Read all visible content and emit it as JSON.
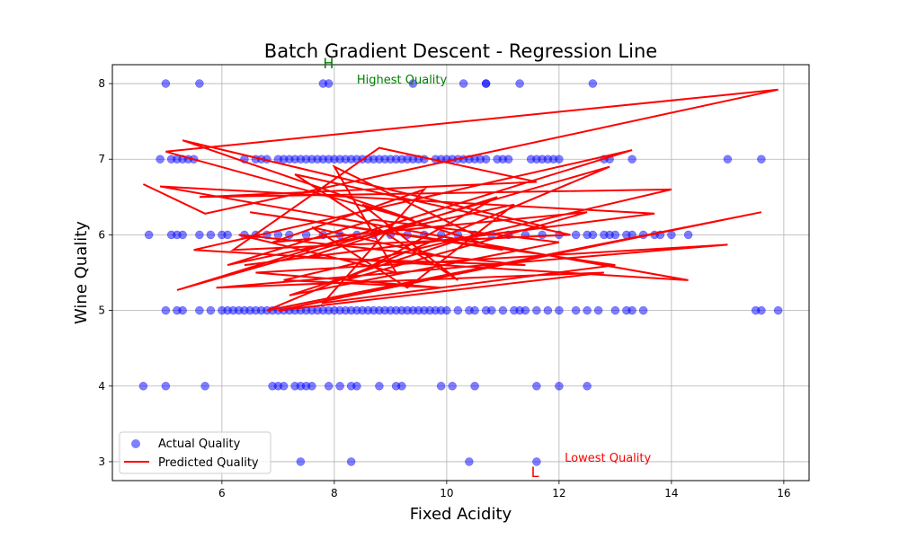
{
  "chart_data": {
    "type": "scatter",
    "title": "Batch Gradient Descent - Regression Line",
    "xlabel": "Fixed Acidity",
    "ylabel": "Wine Quality",
    "xlim": [
      4.05,
      16.45
    ],
    "ylim": [
      2.75,
      8.25
    ],
    "xticks": [
      6,
      8,
      10,
      12,
      14,
      16
    ],
    "yticks": [
      3,
      4,
      5,
      6,
      7,
      8
    ],
    "grid": true,
    "legend_position": "lower-left",
    "series": [
      {
        "name": "Actual Quality",
        "kind": "scatter",
        "color": "#0000ff",
        "alpha": 0.5,
        "points": [
          [
            5.0,
            8
          ],
          [
            5.6,
            8
          ],
          [
            7.8,
            8
          ],
          [
            7.9,
            8
          ],
          [
            9.4,
            8
          ],
          [
            10.3,
            8
          ],
          [
            10.7,
            8
          ],
          [
            10.7,
            8
          ],
          [
            11.3,
            8
          ],
          [
            12.6,
            8
          ],
          [
            4.9,
            7
          ],
          [
            5.1,
            7
          ],
          [
            5.2,
            7
          ],
          [
            5.3,
            7
          ],
          [
            5.4,
            7
          ],
          [
            5.5,
            7
          ],
          [
            6.4,
            7
          ],
          [
            6.6,
            7
          ],
          [
            6.7,
            7
          ],
          [
            6.8,
            7
          ],
          [
            7.0,
            7
          ],
          [
            7.1,
            7
          ],
          [
            7.2,
            7
          ],
          [
            7.3,
            7
          ],
          [
            7.4,
            7
          ],
          [
            7.5,
            7
          ],
          [
            7.6,
            7
          ],
          [
            7.7,
            7
          ],
          [
            7.8,
            7
          ],
          [
            7.9,
            7
          ],
          [
            8.0,
            7
          ],
          [
            8.1,
            7
          ],
          [
            8.2,
            7
          ],
          [
            8.3,
            7
          ],
          [
            8.4,
            7
          ],
          [
            8.5,
            7
          ],
          [
            8.6,
            7
          ],
          [
            8.7,
            7
          ],
          [
            8.8,
            7
          ],
          [
            8.9,
            7
          ],
          [
            9.0,
            7
          ],
          [
            9.1,
            7
          ],
          [
            9.2,
            7
          ],
          [
            9.3,
            7
          ],
          [
            9.4,
            7
          ],
          [
            9.5,
            7
          ],
          [
            9.6,
            7
          ],
          [
            9.8,
            7
          ],
          [
            9.9,
            7
          ],
          [
            10.0,
            7
          ],
          [
            10.1,
            7
          ],
          [
            10.2,
            7
          ],
          [
            10.3,
            7
          ],
          [
            10.4,
            7
          ],
          [
            10.5,
            7
          ],
          [
            10.6,
            7
          ],
          [
            10.7,
            7
          ],
          [
            10.9,
            7
          ],
          [
            11.0,
            7
          ],
          [
            11.1,
            7
          ],
          [
            11.5,
            7
          ],
          [
            11.6,
            7
          ],
          [
            11.7,
            7
          ],
          [
            11.8,
            7
          ],
          [
            11.9,
            7
          ],
          [
            12.0,
            7
          ],
          [
            12.8,
            7
          ],
          [
            12.9,
            7
          ],
          [
            13.3,
            7
          ],
          [
            15.0,
            7
          ],
          [
            15.6,
            7
          ],
          [
            4.7,
            6
          ],
          [
            5.1,
            6
          ],
          [
            5.2,
            6
          ],
          [
            5.3,
            6
          ],
          [
            5.6,
            6
          ],
          [
            5.8,
            6
          ],
          [
            6.0,
            6
          ],
          [
            6.1,
            6
          ],
          [
            6.4,
            6
          ],
          [
            6.6,
            6
          ],
          [
            6.8,
            6
          ],
          [
            7.0,
            6
          ],
          [
            7.2,
            6
          ],
          [
            7.5,
            6
          ],
          [
            7.8,
            6
          ],
          [
            8.1,
            6
          ],
          [
            8.4,
            6
          ],
          [
            8.7,
            6
          ],
          [
            9.0,
            6
          ],
          [
            9.3,
            6
          ],
          [
            9.6,
            6
          ],
          [
            9.9,
            6
          ],
          [
            10.2,
            6
          ],
          [
            10.5,
            6
          ],
          [
            10.8,
            6
          ],
          [
            11.1,
            6
          ],
          [
            11.4,
            6
          ],
          [
            11.7,
            6
          ],
          [
            12.0,
            6
          ],
          [
            12.3,
            6
          ],
          [
            12.5,
            6
          ],
          [
            12.6,
            6
          ],
          [
            12.8,
            6
          ],
          [
            12.9,
            6
          ],
          [
            13.0,
            6
          ],
          [
            13.2,
            6
          ],
          [
            13.3,
            6
          ],
          [
            13.5,
            6
          ],
          [
            13.7,
            6
          ],
          [
            13.8,
            6
          ],
          [
            14.0,
            6
          ],
          [
            14.3,
            6
          ],
          [
            5.0,
            5
          ],
          [
            5.2,
            5
          ],
          [
            5.3,
            5
          ],
          [
            5.6,
            5
          ],
          [
            5.8,
            5
          ],
          [
            6.0,
            5
          ],
          [
            6.1,
            5
          ],
          [
            6.2,
            5
          ],
          [
            6.3,
            5
          ],
          [
            6.4,
            5
          ],
          [
            6.5,
            5
          ],
          [
            6.6,
            5
          ],
          [
            6.7,
            5
          ],
          [
            6.8,
            5
          ],
          [
            6.9,
            5
          ],
          [
            7.0,
            5
          ],
          [
            7.1,
            5
          ],
          [
            7.2,
            5
          ],
          [
            7.3,
            5
          ],
          [
            7.4,
            5
          ],
          [
            7.5,
            5
          ],
          [
            7.6,
            5
          ],
          [
            7.7,
            5
          ],
          [
            7.8,
            5
          ],
          [
            7.9,
            5
          ],
          [
            8.0,
            5
          ],
          [
            8.1,
            5
          ],
          [
            8.2,
            5
          ],
          [
            8.3,
            5
          ],
          [
            8.4,
            5
          ],
          [
            8.5,
            5
          ],
          [
            8.6,
            5
          ],
          [
            8.7,
            5
          ],
          [
            8.8,
            5
          ],
          [
            8.9,
            5
          ],
          [
            9.0,
            5
          ],
          [
            9.1,
            5
          ],
          [
            9.2,
            5
          ],
          [
            9.3,
            5
          ],
          [
            9.4,
            5
          ],
          [
            9.5,
            5
          ],
          [
            9.6,
            5
          ],
          [
            9.7,
            5
          ],
          [
            9.8,
            5
          ],
          [
            9.9,
            5
          ],
          [
            10.0,
            5
          ],
          [
            10.2,
            5
          ],
          [
            10.4,
            5
          ],
          [
            10.5,
            5
          ],
          [
            10.7,
            5
          ],
          [
            10.8,
            5
          ],
          [
            11.0,
            5
          ],
          [
            11.2,
            5
          ],
          [
            11.3,
            5
          ],
          [
            11.4,
            5
          ],
          [
            11.6,
            5
          ],
          [
            11.8,
            5
          ],
          [
            12.0,
            5
          ],
          [
            12.3,
            5
          ],
          [
            12.5,
            5
          ],
          [
            12.7,
            5
          ],
          [
            13.0,
            5
          ],
          [
            13.2,
            5
          ],
          [
            13.3,
            5
          ],
          [
            13.5,
            5
          ],
          [
            15.5,
            5
          ],
          [
            15.6,
            5
          ],
          [
            15.9,
            5
          ],
          [
            4.6,
            4
          ],
          [
            5.0,
            4
          ],
          [
            5.7,
            4
          ],
          [
            6.9,
            4
          ],
          [
            7.0,
            4
          ],
          [
            7.1,
            4
          ],
          [
            7.3,
            4
          ],
          [
            7.4,
            4
          ],
          [
            7.5,
            4
          ],
          [
            7.6,
            4
          ],
          [
            7.9,
            4
          ],
          [
            8.1,
            4
          ],
          [
            8.3,
            4
          ],
          [
            8.4,
            4
          ],
          [
            8.8,
            4
          ],
          [
            9.1,
            4
          ],
          [
            9.2,
            4
          ],
          [
            9.9,
            4
          ],
          [
            10.1,
            4
          ],
          [
            10.5,
            4
          ],
          [
            11.6,
            4
          ],
          [
            12.0,
            4
          ],
          [
            12.5,
            4
          ],
          [
            7.4,
            3
          ],
          [
            8.3,
            3
          ],
          [
            10.4,
            3
          ],
          [
            11.6,
            3
          ]
        ]
      },
      {
        "name": "Predicted Quality",
        "kind": "line",
        "color": "#ff0000",
        "points": [
          [
            4.6,
            6.67
          ],
          [
            5.7,
            6.28
          ],
          [
            15.9,
            7.92
          ],
          [
            5.0,
            7.1
          ],
          [
            9.4,
            6.2
          ],
          [
            5.3,
            7.25
          ],
          [
            11.8,
            6.1
          ],
          [
            6.4,
            5.6
          ],
          [
            13.7,
            6.28
          ],
          [
            4.9,
            6.64
          ],
          [
            14.3,
            5.4
          ],
          [
            5.5,
            5.8
          ],
          [
            13.3,
            7.12
          ],
          [
            5.2,
            5.27
          ],
          [
            12.9,
            6.9
          ],
          [
            6.8,
            5.0
          ],
          [
            15.6,
            6.3
          ],
          [
            7.0,
            5.0
          ],
          [
            12.8,
            5.5
          ],
          [
            5.9,
            5.3
          ],
          [
            15.0,
            5.87
          ],
          [
            6.6,
            5.5
          ],
          [
            9.9,
            5.3
          ],
          [
            7.1,
            5.4
          ],
          [
            14.0,
            6.6
          ],
          [
            5.6,
            6.5
          ],
          [
            11.6,
            6.7
          ],
          [
            8.8,
            7.15
          ],
          [
            6.2,
            5.8
          ],
          [
            12.2,
            6.0
          ],
          [
            7.3,
            6.8
          ],
          [
            10.2,
            5.4
          ],
          [
            8.5,
            6.4
          ],
          [
            11.0,
            5.8
          ],
          [
            6.5,
            6.3
          ],
          [
            13.0,
            5.6
          ],
          [
            7.8,
            5.1
          ],
          [
            9.6,
            6.6
          ],
          [
            6.9,
            5.9
          ],
          [
            12.5,
            6.3
          ],
          [
            8.2,
            5.4
          ],
          [
            10.9,
            6.5
          ],
          [
            7.5,
            5.7
          ],
          [
            11.4,
            5.6
          ],
          [
            6.3,
            6.0
          ],
          [
            9.1,
            5.5
          ],
          [
            8.0,
            6.9
          ],
          [
            10.5,
            6.0
          ],
          [
            7.2,
            5.2
          ],
          [
            12.0,
            5.9
          ],
          [
            8.7,
            6.2
          ],
          [
            6.1,
            5.6
          ],
          [
            11.2,
            6.4
          ],
          [
            9.3,
            5.3
          ],
          [
            7.6,
            6.1
          ],
          [
            10.0,
            5.7
          ]
        ]
      }
    ],
    "annotations": [
      {
        "text": "H",
        "x": 7.8,
        "y": 8.2,
        "color": "#008000",
        "size": 16
      },
      {
        "text": "Highest Quality",
        "x": 8.4,
        "y": 8.0,
        "color": "#008000",
        "size": 13
      },
      {
        "text": "L",
        "x": 11.5,
        "y": 2.8,
        "color": "#ff0000",
        "size": 16
      },
      {
        "text": "Lowest Quality",
        "x": 12.1,
        "y": 3.0,
        "color": "#ff0000",
        "size": 13
      }
    ]
  }
}
